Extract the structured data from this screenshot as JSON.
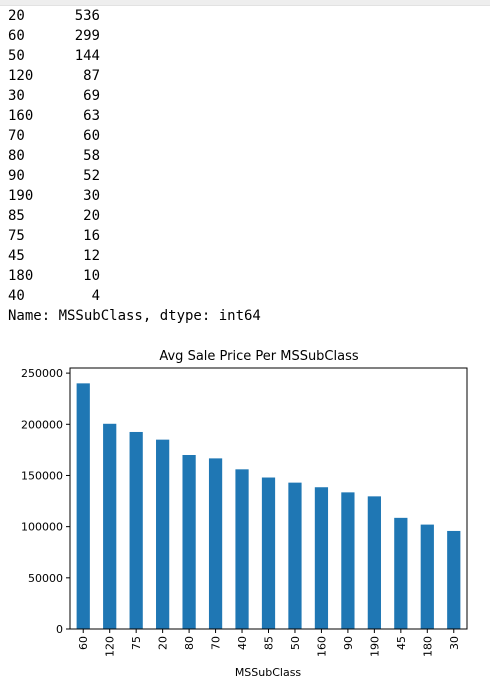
{
  "value_counts": {
    "rows": [
      {
        "key": "20",
        "count": "536"
      },
      {
        "key": "60",
        "count": "299"
      },
      {
        "key": "50",
        "count": "144"
      },
      {
        "key": "120",
        "count": "87"
      },
      {
        "key": "30",
        "count": "69"
      },
      {
        "key": "160",
        "count": "63"
      },
      {
        "key": "70",
        "count": "60"
      },
      {
        "key": "80",
        "count": "58"
      },
      {
        "key": "90",
        "count": "52"
      },
      {
        "key": "190",
        "count": "30"
      },
      {
        "key": "85",
        "count": "20"
      },
      {
        "key": "75",
        "count": "16"
      },
      {
        "key": "45",
        "count": "12"
      },
      {
        "key": "180",
        "count": "10"
      },
      {
        "key": "40",
        "count": "4"
      }
    ],
    "footer": "Name: MSSubClass, dtype: int64"
  },
  "chart_data": {
    "type": "bar",
    "title": "Avg Sale Price Per MSSubClass",
    "xlabel": "MSSubClass",
    "ylabel": "",
    "categories": [
      "60",
      "120",
      "75",
      "20",
      "80",
      "70",
      "40",
      "85",
      "50",
      "160",
      "90",
      "190",
      "45",
      "180",
      "30"
    ],
    "values": [
      240000,
      200500,
      192500,
      185000,
      170000,
      166700,
      156000,
      148000,
      143000,
      138500,
      133500,
      129600,
      108600,
      102000,
      95800
    ],
    "ylim": [
      0,
      255000
    ],
    "yticks": [
      "0",
      "50000",
      "100000",
      "150000",
      "200000",
      "250000"
    ],
    "bar_color": "#1f77b4",
    "grid": false,
    "legend": "none"
  }
}
